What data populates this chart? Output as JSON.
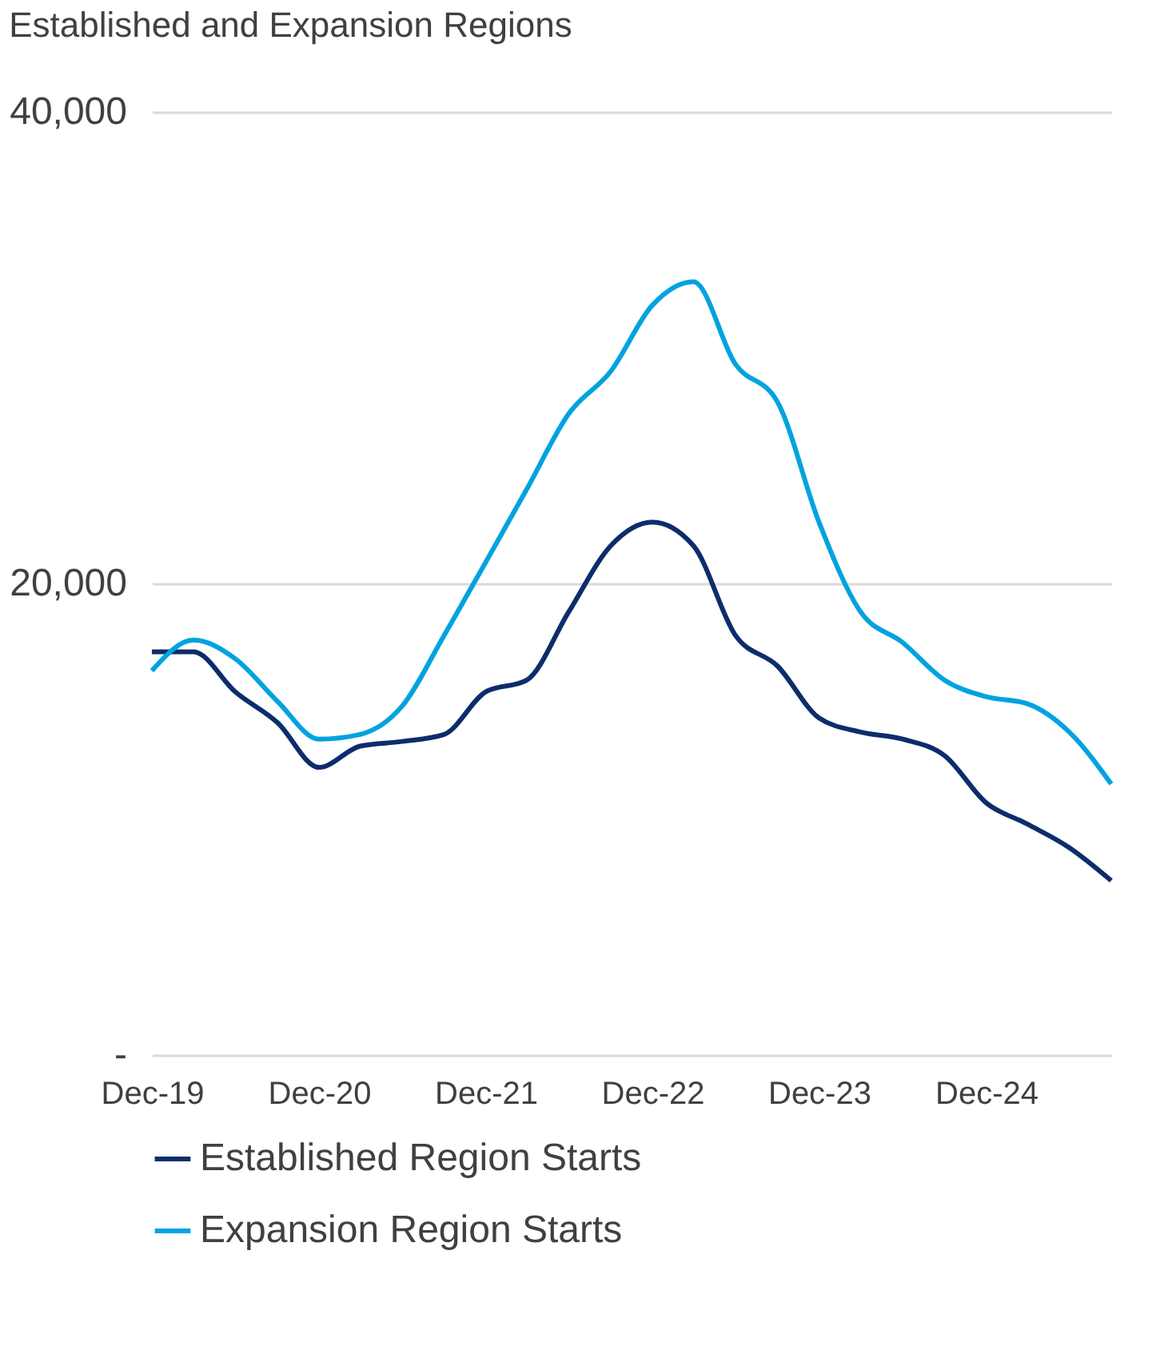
{
  "chart_data": {
    "type": "line",
    "title": "Established and Expansion Regions",
    "x": [
      "2019-12",
      "2020-03",
      "2020-06",
      "2020-09",
      "2020-12",
      "2021-03",
      "2021-06",
      "2021-09",
      "2021-12",
      "2022-03",
      "2022-06",
      "2022-09",
      "2022-12",
      "2023-03",
      "2023-06",
      "2023-09",
      "2023-12",
      "2024-03",
      "2024-06",
      "2024-09",
      "2024-12",
      "2025-03",
      "2025-06",
      "2025-09"
    ],
    "series": [
      {
        "name": "Established Region Starts",
        "color": "#0c2d6b",
        "values": [
          17100,
          17100,
          15400,
          14100,
          12200,
          13100,
          13300,
          13600,
          15400,
          15900,
          18800,
          21600,
          22600,
          21600,
          17800,
          16500,
          14300,
          13700,
          13400,
          12700,
          10700,
          9800,
          8800,
          7400
        ]
      },
      {
        "name": "Expansion Region Starts",
        "color": "#00a3e0",
        "values": [
          16300,
          17600,
          16800,
          15000,
          13400,
          13600,
          14800,
          17800,
          20900,
          24000,
          27200,
          29000,
          31800,
          32800,
          29300,
          27700,
          22600,
          18800,
          17500,
          15900,
          15200,
          14900,
          13700,
          11500
        ]
      }
    ],
    "xlim": [
      "2019-12",
      "2025-09"
    ],
    "xticks": [
      {
        "value": "2019-12",
        "label": "Dec-19"
      },
      {
        "value": "2020-12",
        "label": "Dec-20"
      },
      {
        "value": "2021-12",
        "label": "Dec-21"
      },
      {
        "value": "2022-12",
        "label": "Dec-22"
      },
      {
        "value": "2023-12",
        "label": "Dec-23"
      },
      {
        "value": "2024-12",
        "label": "Dec-24"
      }
    ],
    "ylim": [
      0,
      40000
    ],
    "yticks": [
      {
        "value": 0,
        "label": "-"
      },
      {
        "value": 20000,
        "label": "20,000"
      },
      {
        "value": 40000,
        "label": "40,000"
      }
    ],
    "grid": "y",
    "legend": "bottom",
    "line_style": "solid",
    "marker": "none"
  }
}
